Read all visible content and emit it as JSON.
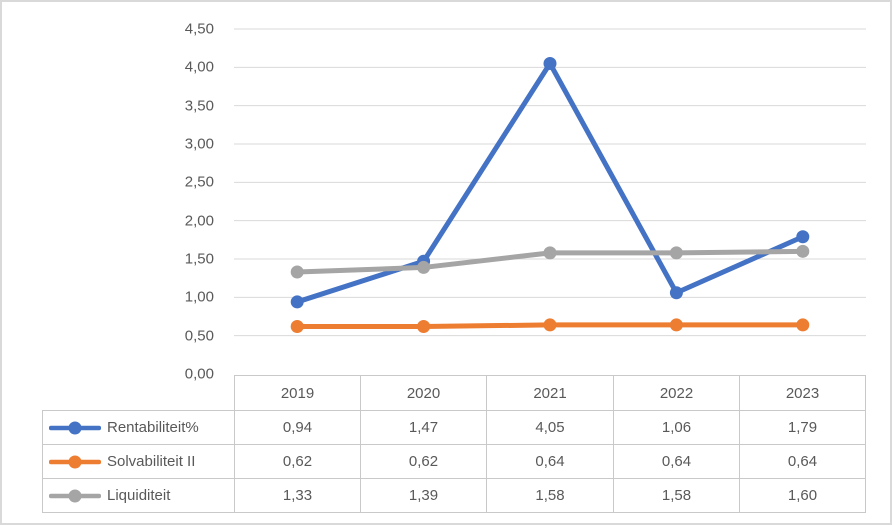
{
  "chart_style": {
    "background": "#FFFFFF",
    "outer_border_color": "#D9D9D9",
    "gridline_color": "#D9D9D9",
    "text_color": "#595959",
    "table_border_color": "#C9C9C9"
  },
  "chart_data": {
    "type": "line",
    "title": "",
    "xlabel": "",
    "ylabel": "",
    "categories": [
      "2019",
      "2020",
      "2021",
      "2022",
      "2023"
    ],
    "series": [
      {
        "name": "Rentabiliteit%",
        "color": "#4472C4",
        "values": [
          0.94,
          1.47,
          4.05,
          1.06,
          1.79
        ],
        "display": [
          "0,94",
          "1,47",
          "4,05",
          "1,06",
          "1,79"
        ]
      },
      {
        "name": "Solvabiliteit II",
        "color": "#ED7D31",
        "values": [
          0.62,
          0.62,
          0.64,
          0.64,
          0.64
        ],
        "display": [
          "0,62",
          "0,62",
          "0,64",
          "0,64",
          "0,64"
        ]
      },
      {
        "name": "Liquiditeit",
        "color": "#A5A5A5",
        "values": [
          1.33,
          1.39,
          1.58,
          1.58,
          1.6
        ],
        "display": [
          "1,33",
          "1,39",
          "1,58",
          "1,58",
          "1,60"
        ]
      }
    ],
    "ylim": [
      0,
      4.5
    ],
    "ytick_step": 0.5,
    "ytick_labels": [
      "0,00",
      "0,50",
      "1,00",
      "1,50",
      "2,00",
      "2,50",
      "3,00",
      "3,50",
      "4,00",
      "4,50"
    ],
    "grid": true,
    "decimal_separator": ",",
    "legend_position": "data-table-left",
    "marker": "circle"
  }
}
